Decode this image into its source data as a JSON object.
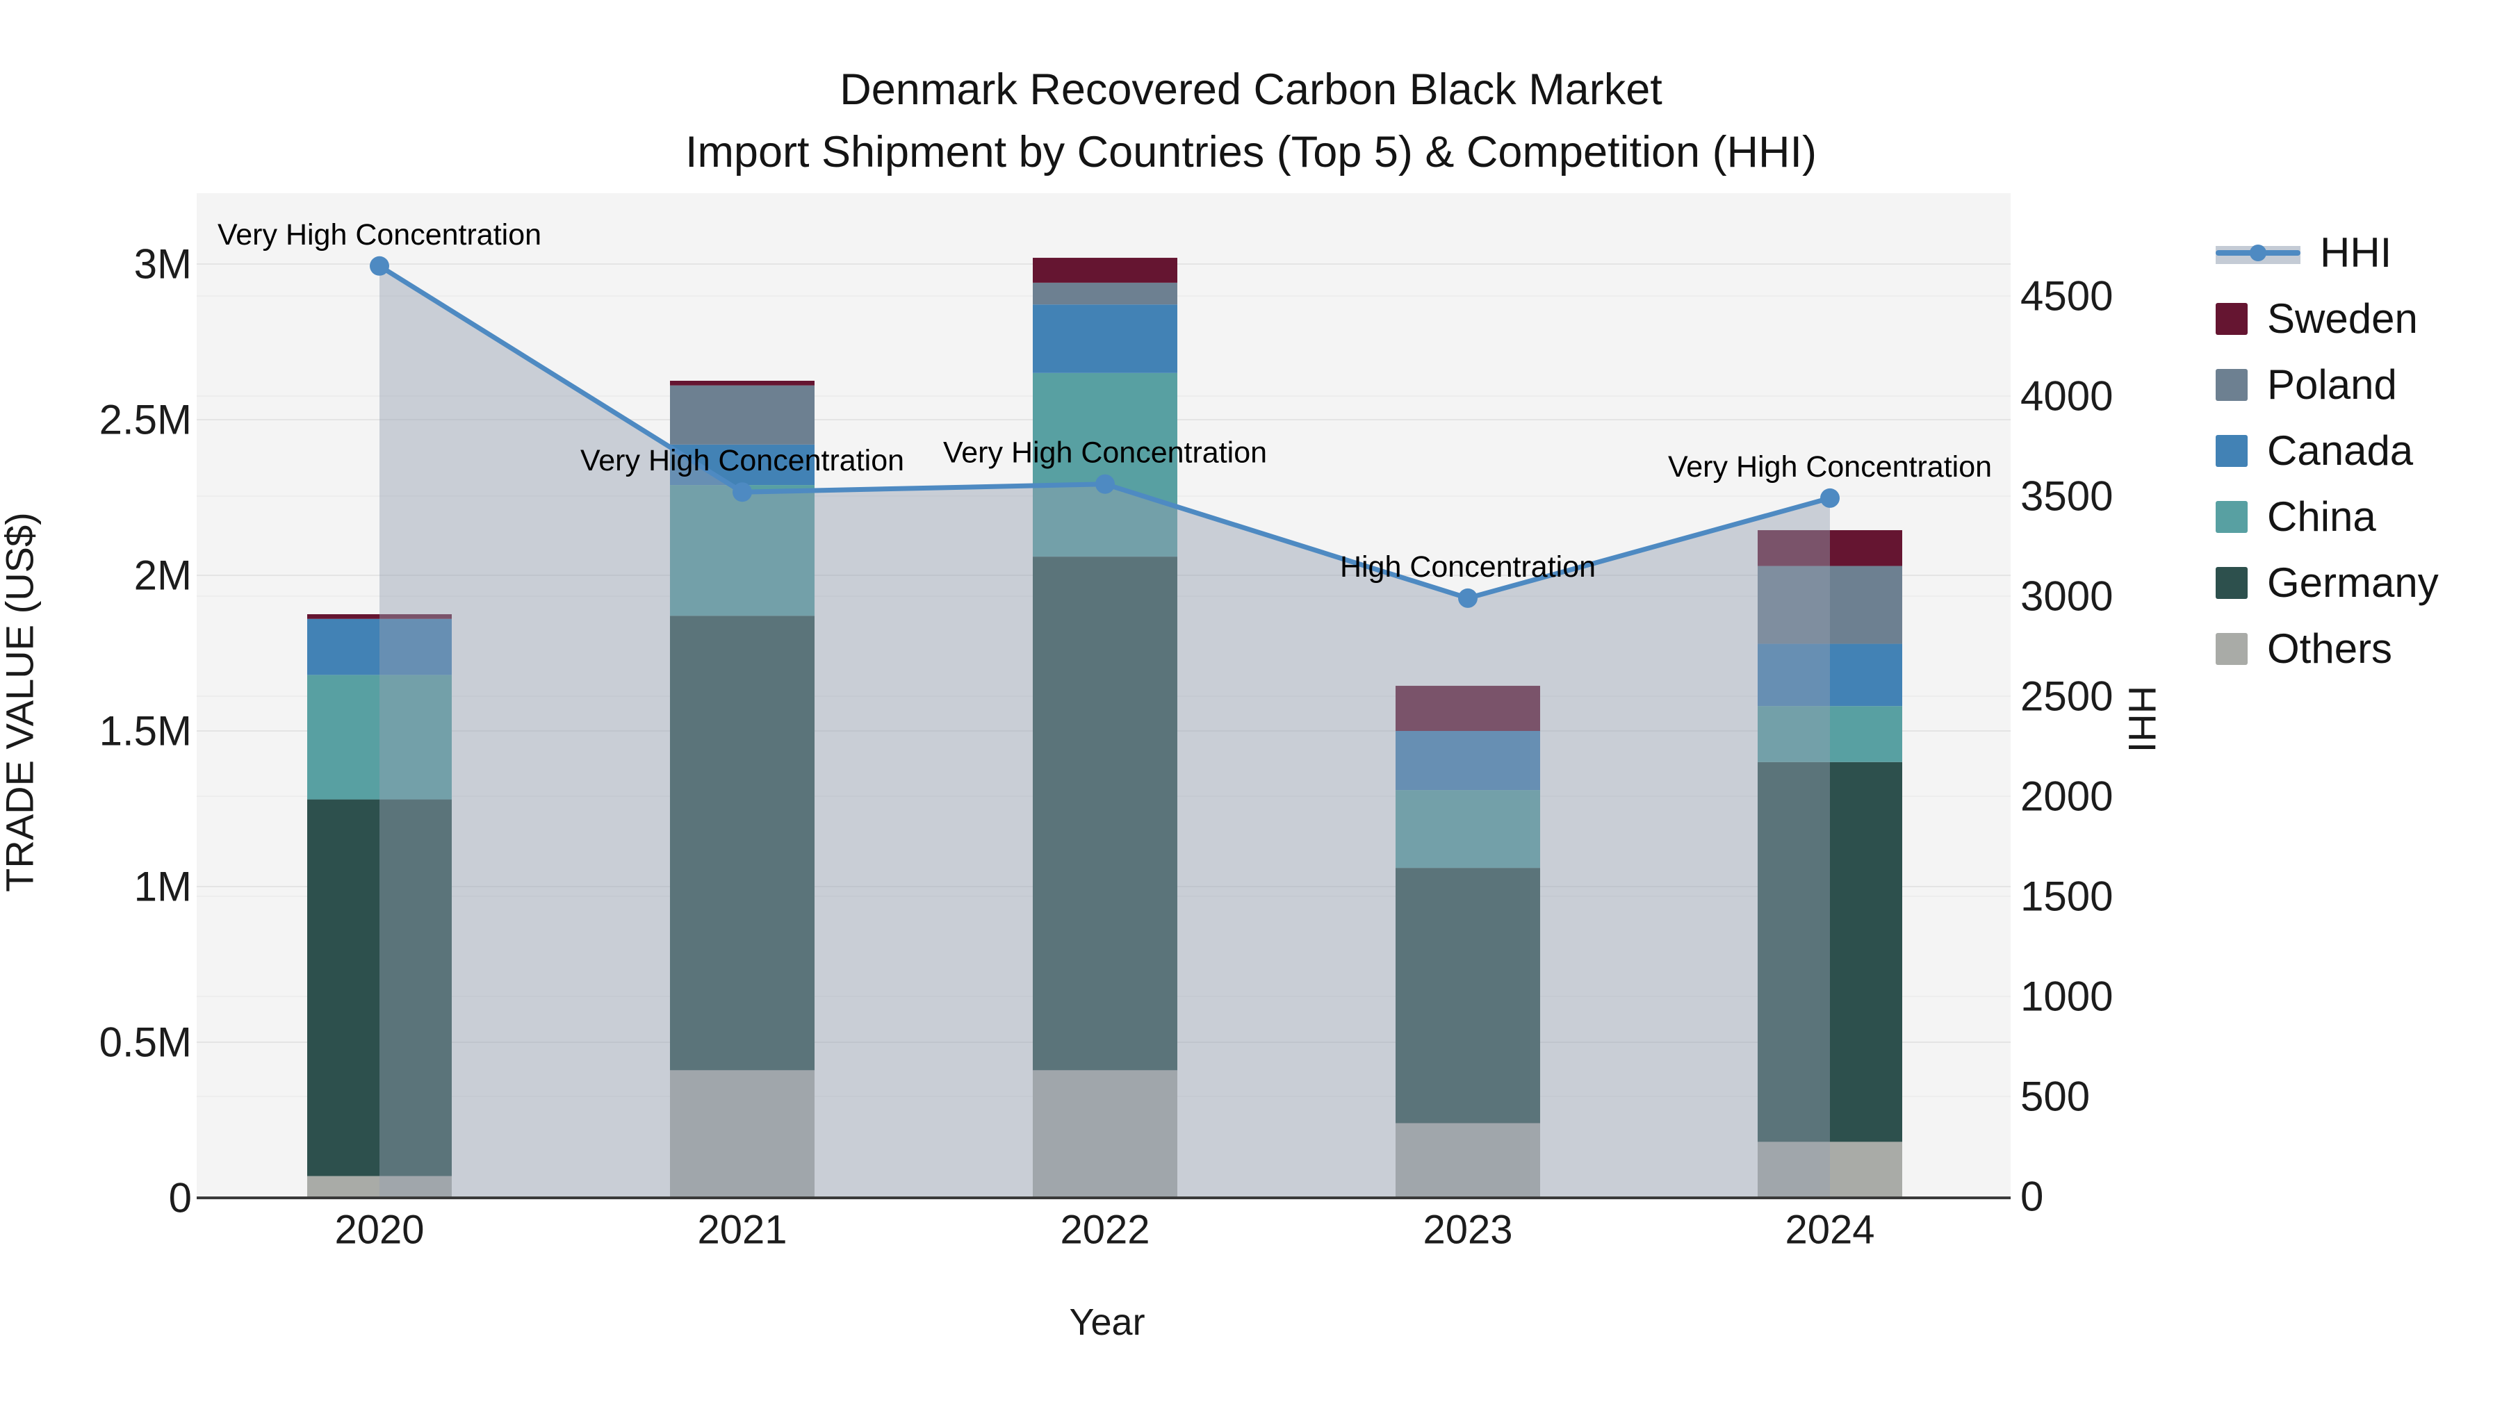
{
  "title": {
    "line1": "Denmark Recovered Carbon Black Market",
    "line2": "Import Shipment by Countries (Top 5) & Competition (HHI)"
  },
  "axes": {
    "x_title": "Year",
    "y_left_title": "TRADE VALUE (US$)",
    "y_right_title": "HHI",
    "y_left_ticks": [
      "0",
      "0.5M",
      "1M",
      "1.5M",
      "2M",
      "2.5M",
      "3M"
    ],
    "y_right_ticks": [
      "0",
      "500",
      "1000",
      "1500",
      "2000",
      "2500",
      "3000",
      "3500",
      "4000",
      "4500"
    ]
  },
  "legend": {
    "items": [
      "HHI",
      "Sweden",
      "Poland",
      "Canada",
      "China",
      "Germany",
      "Others"
    ]
  },
  "chart_data": [
    {
      "type": "bar",
      "stacked": true,
      "categories": [
        "2020",
        "2021",
        "2022",
        "2023",
        "2024"
      ],
      "value_unit": "US$",
      "ylabel": "TRADE VALUE (US$)",
      "ylim": [
        0,
        3230000
      ],
      "series": [
        {
          "name": "Others",
          "color": "#A9ABA7",
          "values": [
            70000,
            410000,
            410000,
            240000,
            180000
          ]
        },
        {
          "name": "Germany",
          "color": "#2D504D",
          "values": [
            1210000,
            1460000,
            1650000,
            820000,
            1220000
          ]
        },
        {
          "name": "China",
          "color": "#58A0A2",
          "values": [
            400000,
            420000,
            590000,
            250000,
            180000
          ]
        },
        {
          "name": "Canada",
          "color": "#4282B5",
          "values": [
            180000,
            130000,
            220000,
            190000,
            200000
          ]
        },
        {
          "name": "Poland",
          "color": "#6D8091",
          "values": [
            0,
            190000,
            70000,
            0,
            250000
          ]
        },
        {
          "name": "Sweden",
          "color": "#651531",
          "values": [
            15000,
            15000,
            80000,
            145000,
            115000
          ]
        }
      ]
    },
    {
      "type": "line",
      "name": "HHI",
      "x": [
        "2020",
        "2021",
        "2022",
        "2023",
        "2024"
      ],
      "values": [
        4650,
        3520,
        3560,
        2990,
        3490
      ],
      "color": "#4E8AC2",
      "area_fill": "rgba(148,160,178,0.45)",
      "ylabel": "HHI",
      "ylim": [
        0,
        5000
      ],
      "legend_position": "right",
      "grid": true,
      "annotations": [
        "Very High Concentration",
        "Very High Concentration",
        "Very High Concentration",
        "High Concentration",
        "Very High Concentration"
      ]
    }
  ]
}
